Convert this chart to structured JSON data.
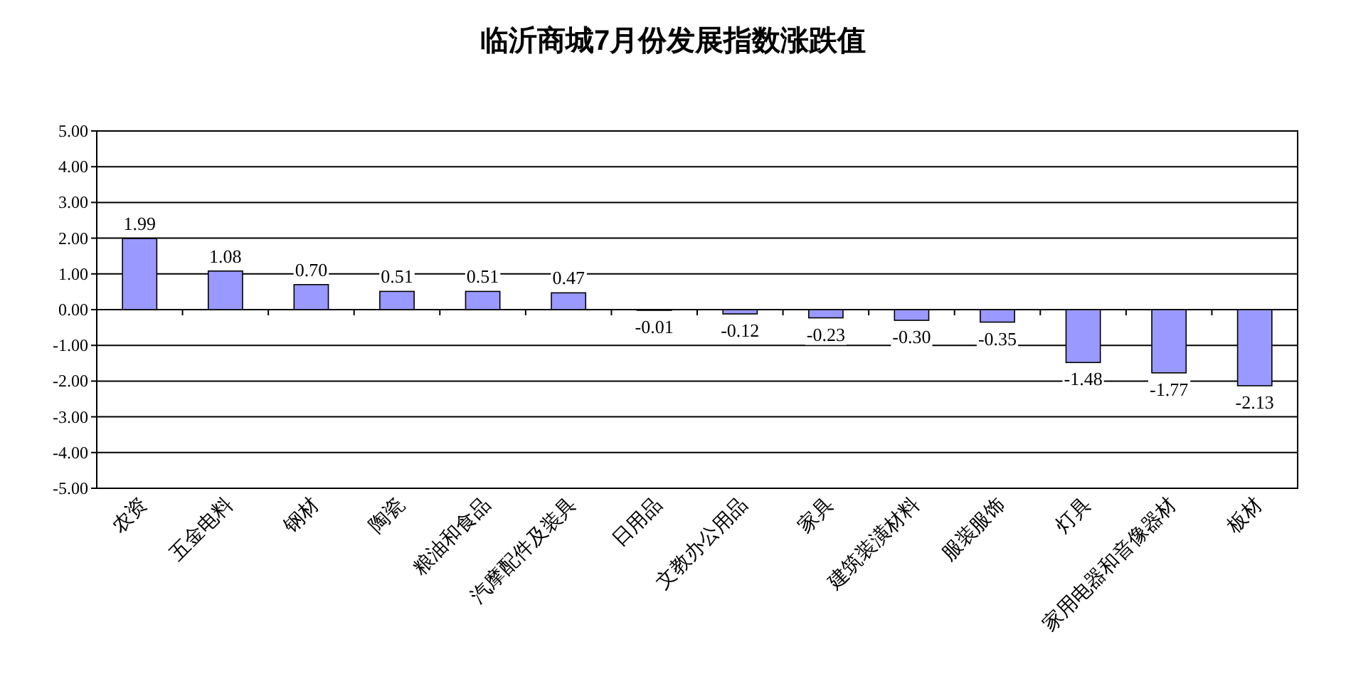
{
  "chart_data": {
    "type": "bar",
    "title": "临沂商城7月份发展指数涨跌值",
    "categories": [
      "农资",
      "五金电料",
      "钢材",
      "陶瓷",
      "粮油和食品",
      "汽摩配件及装具",
      "日用品",
      "文教办公用品",
      "家具",
      "建筑装潢材料",
      "服装服饰",
      "灯具",
      "家用电器和音像器材",
      "板材"
    ],
    "values": [
      1.99,
      1.08,
      0.7,
      0.51,
      0.51,
      0.47,
      -0.01,
      -0.12,
      -0.23,
      -0.3,
      -0.35,
      -1.48,
      -1.77,
      -2.13
    ],
    "value_labels": [
      "1.99",
      "1.08",
      "0.70",
      "0.51",
      "0.51",
      "0.47",
      "-0.01",
      "-0.12",
      "-0.23",
      "-0.30",
      "-0.35",
      "-1.48",
      "-1.77",
      "-2.13"
    ],
    "color": "#9999ff",
    "ylim": [
      -5,
      5
    ],
    "yticks": [
      {
        "value": -5,
        "label": "-5.00"
      },
      {
        "value": -4,
        "label": "-4.00"
      },
      {
        "value": -3,
        "label": "-3.00"
      },
      {
        "value": -2,
        "label": "-2.00"
      },
      {
        "value": -1,
        "label": "-1.00"
      },
      {
        "value": 0,
        "label": "0.00"
      },
      {
        "value": 1,
        "label": "1.00"
      },
      {
        "value": 2,
        "label": "2.00"
      },
      {
        "value": 3,
        "label": "3.00"
      },
      {
        "value": 4,
        "label": "4.00"
      },
      {
        "value": 5,
        "label": "5.00"
      }
    ],
    "grid": "y"
  }
}
